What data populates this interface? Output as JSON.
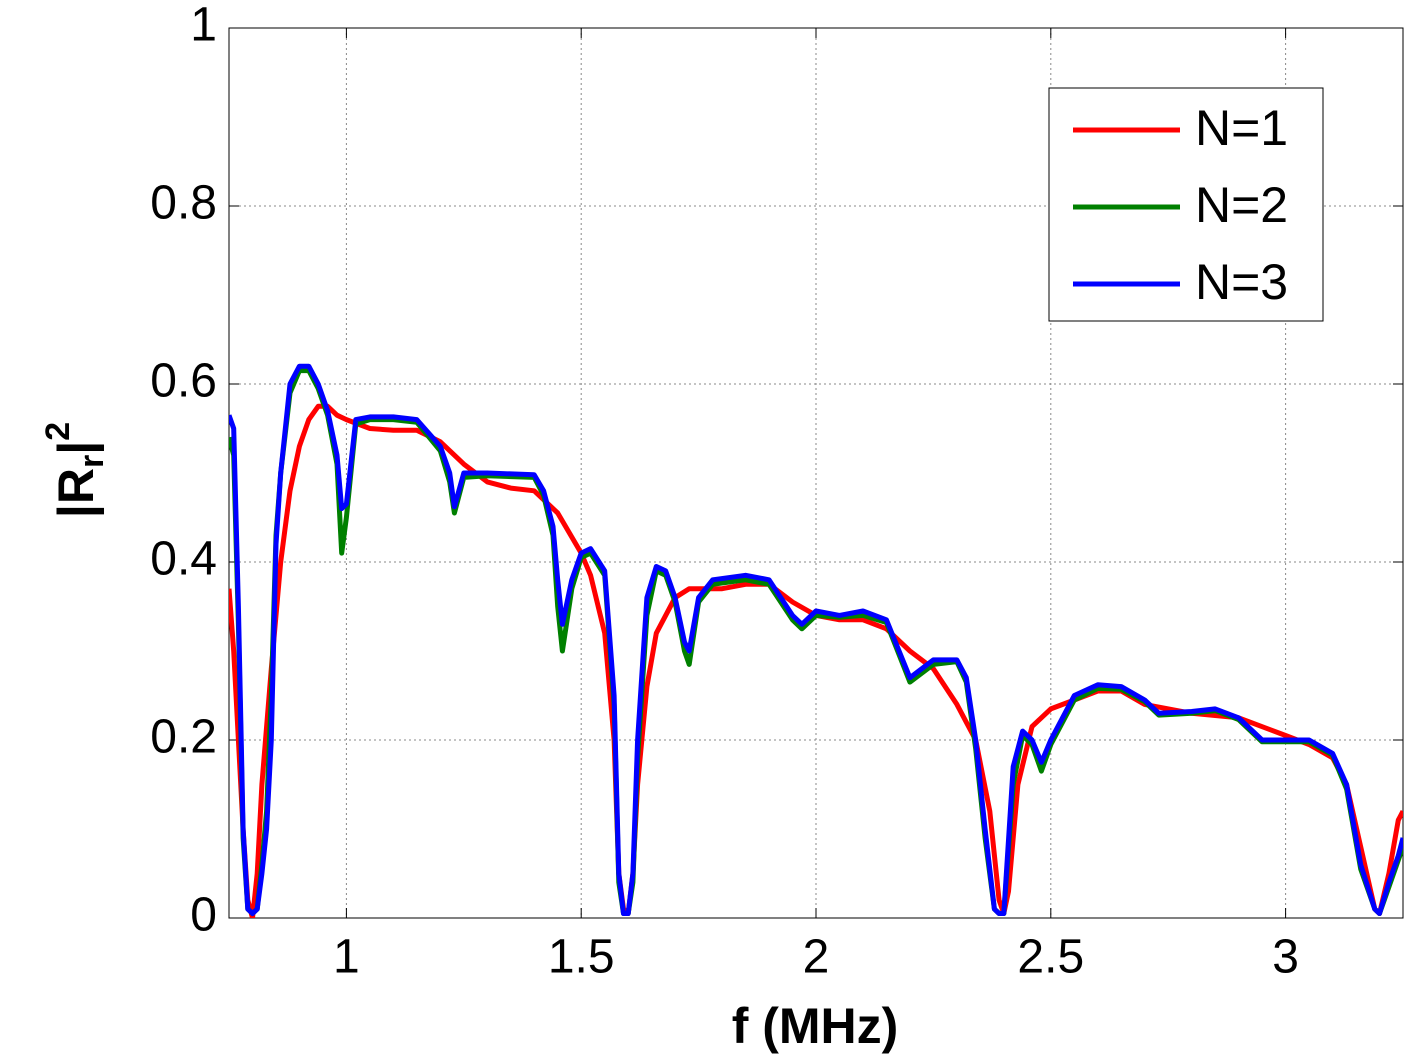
{
  "chart_data": {
    "type": "line",
    "xlabel": "f (MHz)",
    "ylabel": [
      "|R",
      "r",
      "|",
      "2"
    ],
    "xlim": [
      0.75,
      3.25
    ],
    "ylim": [
      0,
      1
    ],
    "xticks": [
      1,
      1.5,
      2,
      2.5,
      3
    ],
    "yticks": [
      0,
      0.2,
      0.4,
      0.6,
      0.8,
      1
    ],
    "grid": true,
    "legend": "upper right",
    "series": [
      {
        "name": "N=1",
        "color": "#ff0000",
        "x": [
          0.75,
          0.76,
          0.77,
          0.78,
          0.79,
          0.8,
          0.81,
          0.82,
          0.84,
          0.86,
          0.88,
          0.9,
          0.92,
          0.94,
          0.96,
          0.98,
          1.0,
          1.05,
          1.1,
          1.15,
          1.2,
          1.25,
          1.3,
          1.35,
          1.4,
          1.45,
          1.5,
          1.52,
          1.55,
          1.57,
          1.58,
          1.59,
          1.6,
          1.61,
          1.62,
          1.64,
          1.66,
          1.7,
          1.73,
          1.8,
          1.85,
          1.9,
          1.95,
          2.0,
          2.05,
          2.1,
          2.15,
          2.2,
          2.25,
          2.3,
          2.34,
          2.37,
          2.39,
          2.4,
          2.41,
          2.43,
          2.46,
          2.5,
          2.55,
          2.6,
          2.65,
          2.7,
          2.8,
          2.9,
          3.0,
          3.05,
          3.1,
          3.13,
          3.16,
          3.19,
          3.2,
          3.22,
          3.24,
          3.25
        ],
        "values": [
          0.37,
          0.3,
          0.2,
          0.1,
          0.02,
          0.0,
          0.05,
          0.15,
          0.28,
          0.4,
          0.48,
          0.53,
          0.56,
          0.575,
          0.575,
          0.565,
          0.56,
          0.55,
          0.548,
          0.548,
          0.535,
          0.51,
          0.49,
          0.483,
          0.48,
          0.455,
          0.41,
          0.385,
          0.32,
          0.2,
          0.05,
          0.01,
          0.005,
          0.05,
          0.15,
          0.26,
          0.32,
          0.36,
          0.37,
          0.37,
          0.375,
          0.375,
          0.355,
          0.34,
          0.335,
          0.335,
          0.325,
          0.3,
          0.28,
          0.24,
          0.2,
          0.12,
          0.02,
          0.005,
          0.03,
          0.15,
          0.215,
          0.235,
          0.245,
          0.255,
          0.255,
          0.24,
          0.23,
          0.225,
          0.205,
          0.195,
          0.18,
          0.15,
          0.08,
          0.01,
          0.005,
          0.05,
          0.11,
          0.12
        ]
      },
      {
        "name": "N=2",
        "color": "#008000",
        "x": [
          0.75,
          0.76,
          0.77,
          0.78,
          0.79,
          0.8,
          0.81,
          0.82,
          0.83,
          0.84,
          0.85,
          0.86,
          0.88,
          0.9,
          0.92,
          0.94,
          0.96,
          0.98,
          0.99,
          1.0,
          1.02,
          1.05,
          1.1,
          1.15,
          1.2,
          1.22,
          1.23,
          1.25,
          1.3,
          1.4,
          1.42,
          1.44,
          1.45,
          1.46,
          1.48,
          1.5,
          1.52,
          1.55,
          1.57,
          1.58,
          1.59,
          1.6,
          1.61,
          1.62,
          1.64,
          1.66,
          1.68,
          1.7,
          1.72,
          1.73,
          1.75,
          1.78,
          1.85,
          1.9,
          1.95,
          1.97,
          2.0,
          2.05,
          2.1,
          2.15,
          2.2,
          2.25,
          2.3,
          2.32,
          2.34,
          2.36,
          2.38,
          2.39,
          2.4,
          2.42,
          2.44,
          2.46,
          2.48,
          2.5,
          2.55,
          2.6,
          2.65,
          2.7,
          2.73,
          2.8,
          2.85,
          2.9,
          2.95,
          3.0,
          3.05,
          3.1,
          3.13,
          3.16,
          3.19,
          3.2,
          3.22,
          3.24,
          3.25
        ],
        "values": [
          0.54,
          0.52,
          0.33,
          0.09,
          0.01,
          0.005,
          0.01,
          0.06,
          0.12,
          0.25,
          0.43,
          0.5,
          0.59,
          0.615,
          0.615,
          0.595,
          0.565,
          0.51,
          0.41,
          0.45,
          0.555,
          0.56,
          0.56,
          0.557,
          0.525,
          0.49,
          0.455,
          0.495,
          0.497,
          0.495,
          0.475,
          0.43,
          0.35,
          0.3,
          0.37,
          0.405,
          0.41,
          0.385,
          0.24,
          0.04,
          0.005,
          0.005,
          0.04,
          0.18,
          0.34,
          0.39,
          0.385,
          0.355,
          0.3,
          0.285,
          0.355,
          0.375,
          0.38,
          0.375,
          0.335,
          0.325,
          0.34,
          0.338,
          0.34,
          0.332,
          0.265,
          0.285,
          0.288,
          0.265,
          0.19,
          0.09,
          0.01,
          0.005,
          0.005,
          0.15,
          0.205,
          0.195,
          0.165,
          0.195,
          0.245,
          0.258,
          0.257,
          0.243,
          0.228,
          0.23,
          0.233,
          0.223,
          0.198,
          0.198,
          0.198,
          0.183,
          0.145,
          0.055,
          0.01,
          0.005,
          0.035,
          0.065,
          0.08
        ]
      },
      {
        "name": "N=3",
        "color": "#0000ff",
        "x": [
          0.75,
          0.76,
          0.77,
          0.78,
          0.79,
          0.8,
          0.81,
          0.82,
          0.83,
          0.84,
          0.85,
          0.86,
          0.88,
          0.9,
          0.92,
          0.94,
          0.96,
          0.98,
          0.99,
          1.0,
          1.02,
          1.05,
          1.1,
          1.15,
          1.2,
          1.22,
          1.23,
          1.25,
          1.3,
          1.4,
          1.42,
          1.44,
          1.45,
          1.46,
          1.48,
          1.5,
          1.52,
          1.55,
          1.57,
          1.58,
          1.59,
          1.6,
          1.61,
          1.62,
          1.64,
          1.66,
          1.68,
          1.7,
          1.72,
          1.73,
          1.75,
          1.78,
          1.85,
          1.9,
          1.95,
          1.97,
          2.0,
          2.05,
          2.1,
          2.15,
          2.2,
          2.25,
          2.3,
          2.32,
          2.34,
          2.36,
          2.38,
          2.39,
          2.4,
          2.42,
          2.44,
          2.46,
          2.48,
          2.5,
          2.55,
          2.6,
          2.65,
          2.7,
          2.73,
          2.8,
          2.85,
          2.9,
          2.95,
          3.0,
          3.05,
          3.1,
          3.13,
          3.16,
          3.19,
          3.2,
          3.22,
          3.24,
          3.25
        ],
        "values": [
          0.565,
          0.55,
          0.35,
          0.1,
          0.01,
          0.005,
          0.01,
          0.05,
          0.1,
          0.2,
          0.42,
          0.5,
          0.6,
          0.62,
          0.62,
          0.6,
          0.57,
          0.52,
          0.46,
          0.465,
          0.56,
          0.563,
          0.563,
          0.56,
          0.53,
          0.5,
          0.462,
          0.5,
          0.5,
          0.498,
          0.48,
          0.44,
          0.38,
          0.33,
          0.38,
          0.41,
          0.415,
          0.39,
          0.25,
          0.05,
          0.005,
          0.005,
          0.05,
          0.2,
          0.36,
          0.395,
          0.39,
          0.36,
          0.31,
          0.3,
          0.36,
          0.38,
          0.385,
          0.38,
          0.34,
          0.33,
          0.345,
          0.34,
          0.345,
          0.335,
          0.27,
          0.29,
          0.29,
          0.27,
          0.2,
          0.1,
          0.01,
          0.005,
          0.005,
          0.17,
          0.21,
          0.2,
          0.175,
          0.2,
          0.25,
          0.262,
          0.26,
          0.245,
          0.23,
          0.232,
          0.235,
          0.225,
          0.2,
          0.2,
          0.2,
          0.185,
          0.15,
          0.06,
          0.01,
          0.005,
          0.04,
          0.07,
          0.09
        ]
      }
    ]
  }
}
